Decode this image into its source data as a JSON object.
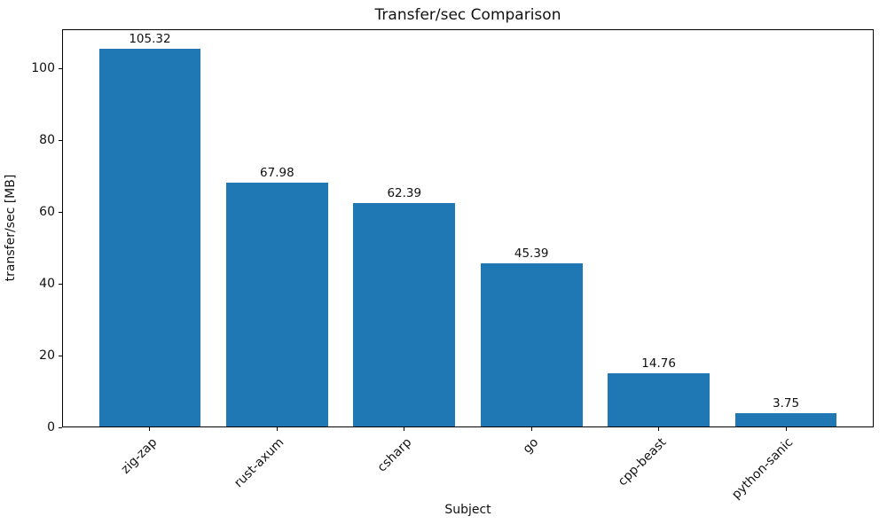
{
  "chart_data": {
    "type": "bar",
    "title": "Transfer/sec Comparison",
    "xlabel": "Subject",
    "ylabel": "transfer/sec [MB]",
    "categories": [
      "zig-zap",
      "rust-axum",
      "csharp",
      "go",
      "cpp-beast",
      "python-sanic"
    ],
    "values": [
      105.32,
      67.98,
      62.39,
      45.39,
      14.76,
      3.75
    ],
    "bar_value_labels": [
      "105.32",
      "67.98",
      "62.39",
      "45.39",
      "14.76",
      "3.75"
    ],
    "yticks": [
      0,
      20,
      40,
      60,
      80,
      100
    ],
    "ylim": [
      0,
      111
    ],
    "grid": false,
    "legend_position": "none",
    "bar_color": "#1f77b4",
    "background_color": "#ffffff",
    "spine_color": "#000000",
    "text_color": "#111111",
    "x_tick_label_rotation_deg": 45
  }
}
